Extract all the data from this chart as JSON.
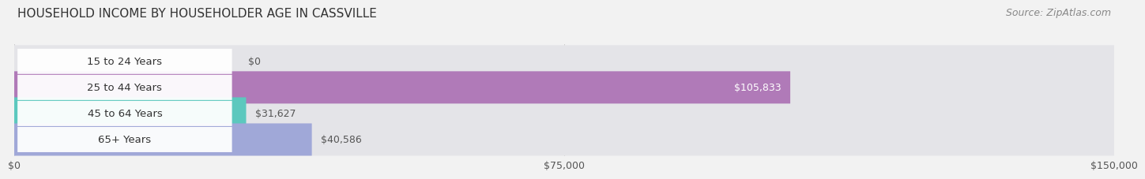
{
  "title": "HOUSEHOLD INCOME BY HOUSEHOLDER AGE IN CASSVILLE",
  "source": "Source: ZipAtlas.com",
  "categories": [
    "15 to 24 Years",
    "25 to 44 Years",
    "45 to 64 Years",
    "65+ Years"
  ],
  "values": [
    0,
    105833,
    31627,
    40586
  ],
  "bar_colors": [
    "#a8c4e0",
    "#b07ab8",
    "#5cc8be",
    "#a0a8d8"
  ],
  "background_color": "#f2f2f2",
  "bar_bg_color": "#e4e4e8",
  "xlim": [
    0,
    150000
  ],
  "xtick_values": [
    0,
    75000,
    150000
  ],
  "xtick_labels": [
    "$0",
    "$75,000",
    "$150,000"
  ],
  "bar_height": 0.62,
  "title_fontsize": 11,
  "value_fontsize": 9,
  "category_fontsize": 9.5,
  "source_fontsize": 9
}
